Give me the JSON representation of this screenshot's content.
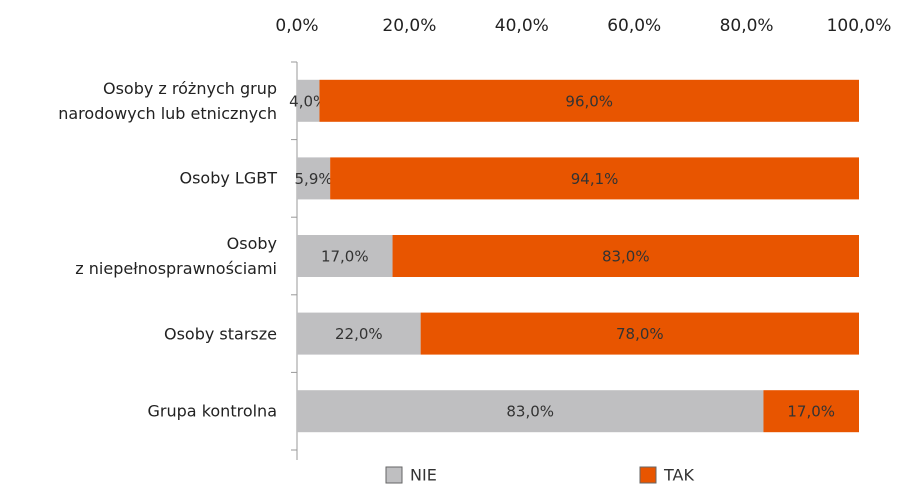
{
  "chart_data": {
    "type": "stacked_barh",
    "categories": [
      "Osoby z różnych grup\nnarodowych lub etnicznych",
      "Osoby LGBT",
      "Osoby \nz niepełnosprawnościami",
      "Osoby starsze",
      "Grupa kontrolna"
    ],
    "series": [
      {
        "name": "NIE",
        "color": "#bfbfc1",
        "values": [
          4.0,
          5.9,
          17.0,
          22.0,
          83.0
        ],
        "value_labels": [
          "4,0%",
          "5,9%",
          "17,0%",
          "22,0%",
          "83,0%"
        ]
      },
      {
        "name": "TAK",
        "color": "#e85500",
        "values": [
          96.0,
          94.1,
          83.0,
          78.0,
          17.0
        ],
        "value_labels": [
          "96,0%",
          "94,1%",
          "83,0%",
          "78,0%",
          "17,0%"
        ]
      }
    ],
    "xlim": [
      0,
      100
    ],
    "xticks": [
      {
        "value": 0,
        "label": "0,0%"
      },
      {
        "value": 20,
        "label": "20,0%"
      },
      {
        "value": 40,
        "label": "40,0%"
      },
      {
        "value": 60,
        "label": "60,0%"
      },
      {
        "value": 80,
        "label": "80,0%"
      },
      {
        "value": 100,
        "label": "100,0%"
      }
    ]
  }
}
